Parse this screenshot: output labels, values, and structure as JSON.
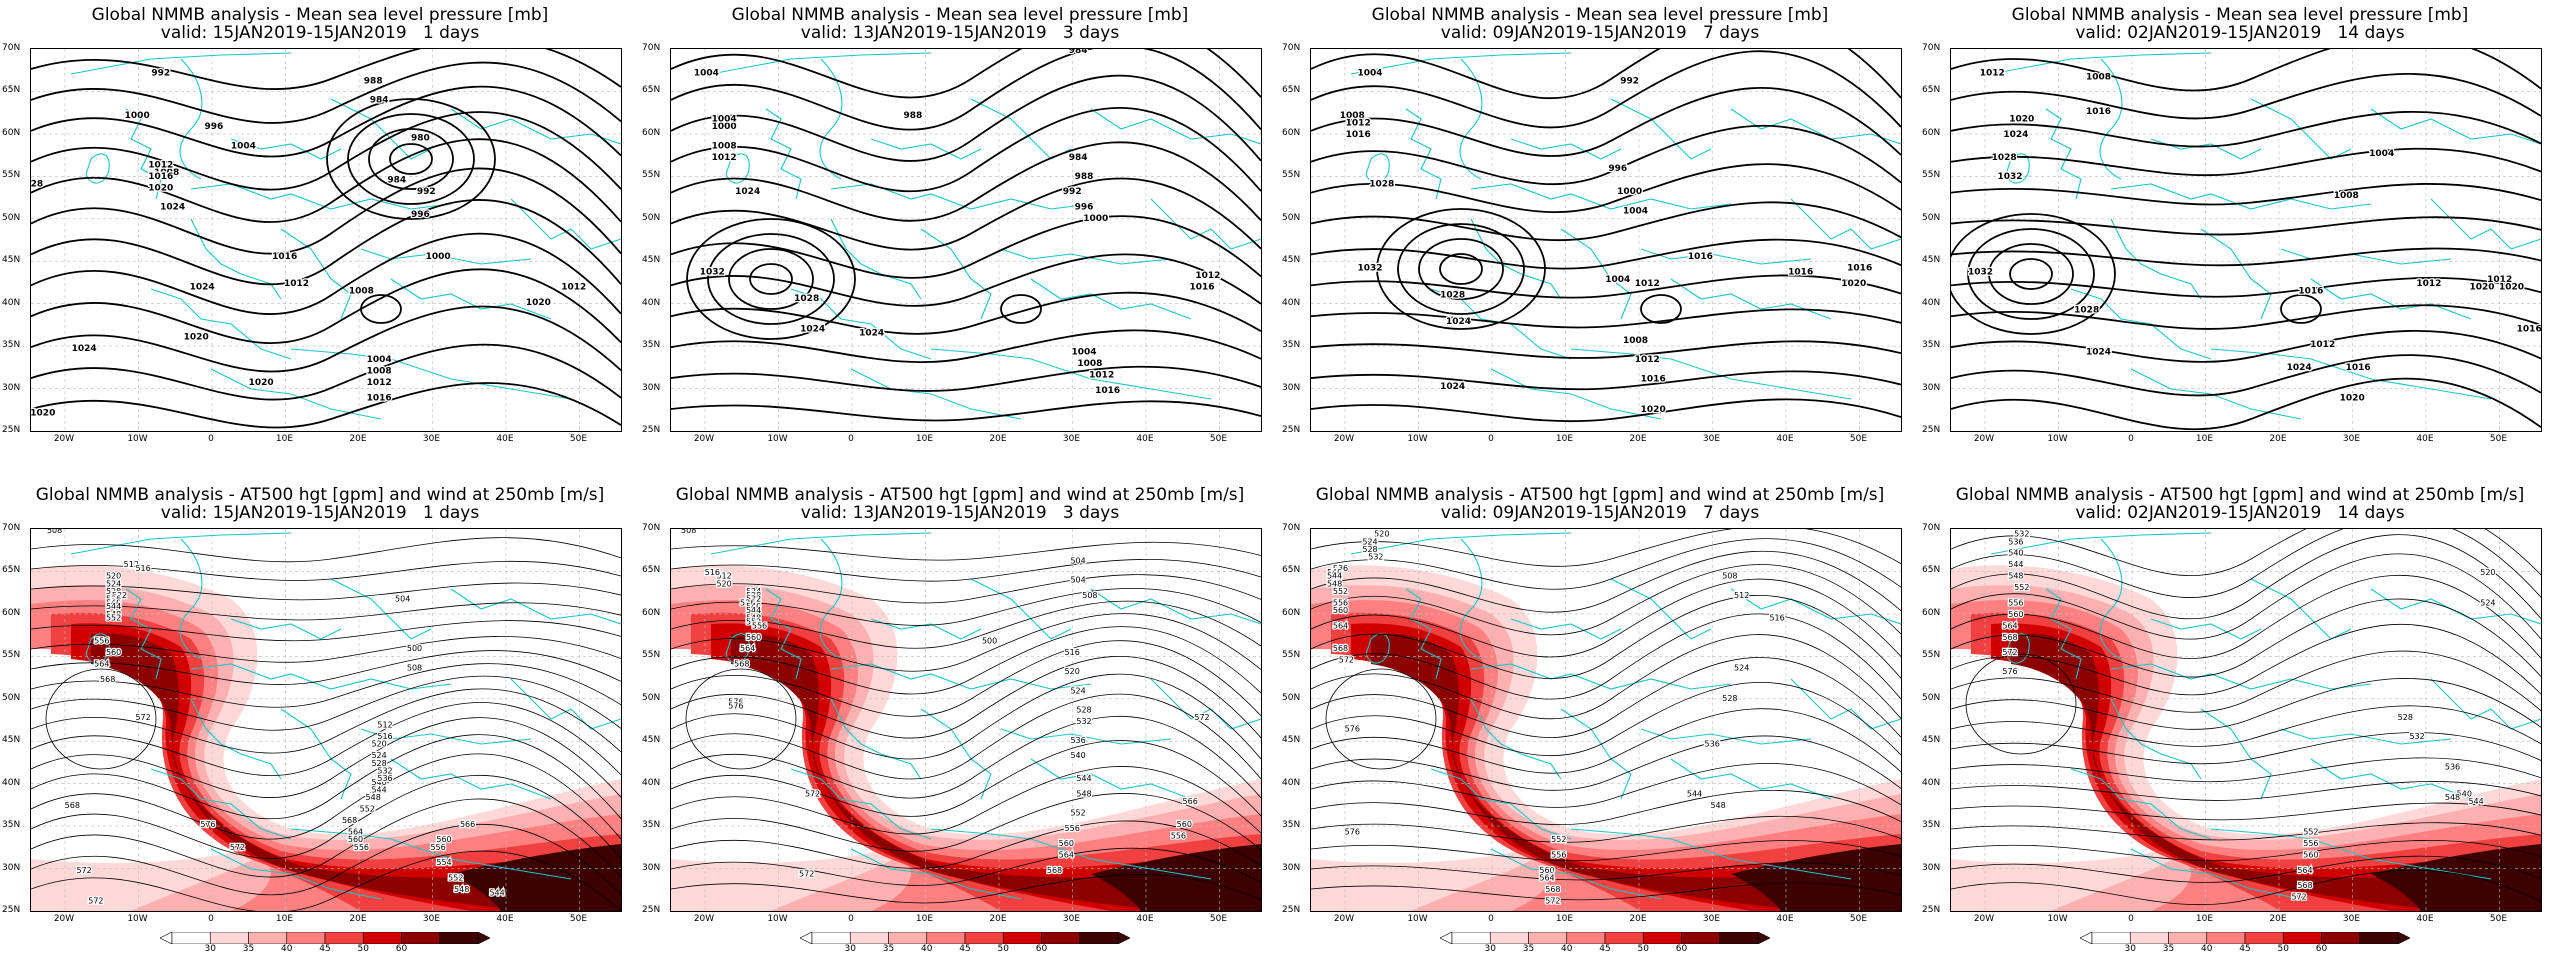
{
  "panels": [
    {
      "title1": "Global NMMB analysis - Mean sea level pressure [mb]",
      "title2": "valid: 15JAN2019-15JAN2019   1 days",
      "kind": "mslp",
      "labels": [
        "992",
        "1000",
        "996",
        "1004",
        "988",
        "984",
        "980",
        "984",
        "992",
        "996",
        "1008",
        "1012",
        "1016",
        "1020",
        "1024",
        "28",
        "1016",
        "1012",
        "1008",
        "1000",
        "1004",
        "1008",
        "1012",
        "1016",
        "1020",
        "1024",
        "1020",
        "1012",
        "1020",
        "1024",
        "1020"
      ],
      "label_pos": [
        [
          0.22,
          0.07
        ],
        [
          0.18,
          0.18
        ],
        [
          0.31,
          0.21
        ],
        [
          0.36,
          0.26
        ],
        [
          0.58,
          0.09
        ],
        [
          0.59,
          0.14
        ],
        [
          0.66,
          0.24
        ],
        [
          0.62,
          0.35
        ],
        [
          0.67,
          0.38
        ],
        [
          0.66,
          0.44
        ],
        [
          0.23,
          0.33
        ],
        [
          0.22,
          0.31
        ],
        [
          0.22,
          0.34
        ],
        [
          0.22,
          0.37
        ],
        [
          0.24,
          0.42
        ],
        [
          0.01,
          0.36
        ],
        [
          0.43,
          0.55
        ],
        [
          0.45,
          0.62
        ],
        [
          0.56,
          0.64
        ],
        [
          0.69,
          0.55
        ],
        [
          0.59,
          0.82
        ],
        [
          0.59,
          0.85
        ],
        [
          0.59,
          0.88
        ],
        [
          0.59,
          0.92
        ],
        [
          0.39,
          0.88
        ],
        [
          0.29,
          0.63
        ],
        [
          0.28,
          0.76
        ],
        [
          0.92,
          0.63
        ],
        [
          0.86,
          0.67
        ],
        [
          0.09,
          0.79
        ],
        [
          0.02,
          0.96
        ]
      ]
    },
    {
      "title1": "Global NMMB analysis - Mean sea level pressure [mb]",
      "title2": "valid: 13JAN2019-15JAN2019   3 days",
      "kind": "mslp",
      "labels": [
        "1004",
        "984",
        "988",
        "1000",
        "1004",
        "1008",
        "1012",
        "1024",
        "1032",
        "1028",
        "1024",
        "992",
        "988",
        "984",
        "996",
        "1000",
        "1004",
        "1008",
        "1012",
        "1016",
        "1016",
        "1012",
        "1024"
      ],
      "label_pos": [
        [
          0.06,
          0.07
        ],
        [
          0.69,
          0.01
        ],
        [
          0.41,
          0.18
        ],
        [
          0.09,
          0.21
        ],
        [
          0.09,
          0.19
        ],
        [
          0.09,
          0.26
        ],
        [
          0.09,
          0.29
        ],
        [
          0.13,
          0.38
        ],
        [
          0.07,
          0.59
        ],
        [
          0.23,
          0.66
        ],
        [
          0.24,
          0.74
        ],
        [
          0.68,
          0.38
        ],
        [
          0.7,
          0.34
        ],
        [
          0.69,
          0.29
        ],
        [
          0.7,
          0.42
        ],
        [
          0.72,
          0.45
        ],
        [
          0.7,
          0.8
        ],
        [
          0.71,
          0.83
        ],
        [
          0.73,
          0.86
        ],
        [
          0.74,
          0.9
        ],
        [
          0.9,
          0.63
        ],
        [
          0.91,
          0.6
        ],
        [
          0.34,
          0.75
        ]
      ]
    },
    {
      "title1": "Global NMMB analysis - Mean sea level pressure [mb]",
      "title2": "valid: 09JAN2019-15JAN2019   7 days",
      "kind": "mslp",
      "labels": [
        "1004",
        "1008",
        "1012",
        "1016",
        "1028",
        "1032",
        "1028",
        "1024",
        "992",
        "996",
        "1000",
        "1004",
        "1016",
        "1024",
        "1004",
        "1012",
        "1008",
        "1012",
        "1016",
        "1020",
        "1016",
        "1020",
        "1016"
      ],
      "label_pos": [
        [
          0.1,
          0.07
        ],
        [
          0.07,
          0.18
        ],
        [
          0.08,
          0.2
        ],
        [
          0.08,
          0.23
        ],
        [
          0.12,
          0.36
        ],
        [
          0.1,
          0.58
        ],
        [
          0.24,
          0.65
        ],
        [
          0.25,
          0.72
        ],
        [
          0.54,
          0.09
        ],
        [
          0.52,
          0.32
        ],
        [
          0.54,
          0.38
        ],
        [
          0.55,
          0.43
        ],
        [
          0.66,
          0.55
        ],
        [
          0.24,
          0.89
        ],
        [
          0.52,
          0.61
        ],
        [
          0.57,
          0.62
        ],
        [
          0.55,
          0.77
        ],
        [
          0.57,
          0.82
        ],
        [
          0.58,
          0.87
        ],
        [
          0.58,
          0.95
        ],
        [
          0.83,
          0.59
        ],
        [
          0.92,
          0.62
        ],
        [
          0.93,
          0.58
        ]
      ]
    },
    {
      "title1": "Global NMMB analysis - Mean sea level pressure [mb]",
      "title2": "valid: 02JAN2019-15JAN2019   14 days",
      "kind": "mslp",
      "labels": [
        "1012",
        "1008",
        "1016",
        "1020",
        "1024",
        "1028",
        "1032",
        "1032",
        "1028",
        "1024",
        "1004",
        "1008",
        "1016",
        "1012",
        "1012",
        "1016",
        "1020",
        "1024",
        "1020",
        "1016",
        "1012",
        "1020"
      ],
      "label_pos": [
        [
          0.07,
          0.07
        ],
        [
          0.25,
          0.08
        ],
        [
          0.25,
          0.17
        ],
        [
          0.12,
          0.19
        ],
        [
          0.11,
          0.23
        ],
        [
          0.09,
          0.29
        ],
        [
          0.1,
          0.34
        ],
        [
          0.05,
          0.59
        ],
        [
          0.23,
          0.69
        ],
        [
          0.25,
          0.8
        ],
        [
          0.73,
          0.28
        ],
        [
          0.67,
          0.39
        ],
        [
          0.61,
          0.64
        ],
        [
          0.63,
          0.78
        ],
        [
          0.81,
          0.62
        ],
        [
          0.69,
          0.84
        ],
        [
          0.68,
          0.92
        ],
        [
          0.59,
          0.84
        ],
        [
          0.9,
          0.63
        ],
        [
          0.98,
          0.74
        ],
        [
          0.93,
          0.61
        ],
        [
          0.95,
          0.63
        ]
      ]
    },
    {
      "title1": "Global NMMB analysis - AT500 hgt [gpm] and wind at 250mb [m/s]",
      "title2": "valid: 15JAN2019-15JAN2019   1 days",
      "kind": "z500",
      "labels": [
        "508",
        "512",
        "516",
        "520",
        "524",
        "528",
        "532",
        "536",
        "540",
        "544",
        "548",
        "552",
        "556",
        "560",
        "564",
        "568",
        "572",
        "576",
        "572",
        "568",
        "564",
        "560",
        "556",
        "552",
        "548",
        "544",
        "540",
        "536",
        "532",
        "528",
        "524",
        "520",
        "516",
        "512",
        "504",
        "500",
        "508",
        "568",
        "572",
        "566",
        "560",
        "556",
        "554",
        "552",
        "548",
        "544",
        "572"
      ],
      "label_pos": [
        [
          0.04,
          0.01
        ],
        [
          0.17,
          0.1
        ],
        [
          0.19,
          0.11
        ],
        [
          0.14,
          0.13
        ],
        [
          0.14,
          0.15
        ],
        [
          0.14,
          0.17
        ],
        [
          0.15,
          0.18
        ],
        [
          0.14,
          0.19
        ],
        [
          0.14,
          0.2
        ],
        [
          0.14,
          0.21
        ],
        [
          0.14,
          0.23
        ],
        [
          0.14,
          0.24
        ],
        [
          0.12,
          0.3
        ],
        [
          0.14,
          0.33
        ],
        [
          0.12,
          0.36
        ],
        [
          0.13,
          0.4
        ],
        [
          0.19,
          0.5
        ],
        [
          0.3,
          0.78
        ],
        [
          0.35,
          0.84
        ],
        [
          0.54,
          0.77
        ],
        [
          0.55,
          0.8
        ],
        [
          0.55,
          0.82
        ],
        [
          0.56,
          0.84
        ],
        [
          0.57,
          0.74
        ],
        [
          0.58,
          0.71
        ],
        [
          0.59,
          0.69
        ],
        [
          0.59,
          0.67
        ],
        [
          0.6,
          0.66
        ],
        [
          0.6,
          0.64
        ],
        [
          0.59,
          0.62
        ],
        [
          0.59,
          0.6
        ],
        [
          0.59,
          0.57
        ],
        [
          0.6,
          0.55
        ],
        [
          0.6,
          0.52
        ],
        [
          0.63,
          0.19
        ],
        [
          0.65,
          0.32
        ],
        [
          0.65,
          0.37
        ],
        [
          0.07,
          0.73
        ],
        [
          0.09,
          0.9
        ],
        [
          0.74,
          0.78
        ],
        [
          0.7,
          0.82
        ],
        [
          0.69,
          0.84
        ],
        [
          0.7,
          0.88
        ],
        [
          0.72,
          0.92
        ],
        [
          0.73,
          0.95
        ],
        [
          0.79,
          0.96
        ],
        [
          0.11,
          0.98
        ]
      ]
    },
    {
      "title1": "Global NMMB analysis - AT500 hgt [gpm] and wind at 250mb [m/s]",
      "title2": "valid: 13JAN2019-15JAN2019   3 days",
      "kind": "z500",
      "labels": [
        "508",
        "512",
        "516",
        "520",
        "524",
        "528",
        "532",
        "536",
        "540",
        "544",
        "548",
        "552",
        "556",
        "560",
        "564",
        "568",
        "576",
        "572",
        "504",
        "508",
        "516",
        "520",
        "524",
        "528",
        "532",
        "536",
        "540",
        "544",
        "548",
        "552",
        "556",
        "560",
        "564",
        "568",
        "572",
        "576",
        "500",
        "504",
        "572",
        "566",
        "560",
        "556"
      ],
      "label_pos": [
        [
          0.03,
          0.01
        ],
        [
          0.09,
          0.13
        ],
        [
          0.07,
          0.12
        ],
        [
          0.09,
          0.15
        ],
        [
          0.14,
          0.17
        ],
        [
          0.14,
          0.18
        ],
        [
          0.14,
          0.19
        ],
        [
          0.13,
          0.2
        ],
        [
          0.14,
          0.21
        ],
        [
          0.14,
          0.22
        ],
        [
          0.14,
          0.24
        ],
        [
          0.14,
          0.25
        ],
        [
          0.15,
          0.26
        ],
        [
          0.14,
          0.29
        ],
        [
          0.13,
          0.32
        ],
        [
          0.12,
          0.36
        ],
        [
          0.11,
          0.46
        ],
        [
          0.23,
          0.91
        ],
        [
          0.69,
          0.09
        ],
        [
          0.71,
          0.18
        ],
        [
          0.68,
          0.33
        ],
        [
          0.68,
          0.38
        ],
        [
          0.69,
          0.43
        ],
        [
          0.7,
          0.48
        ],
        [
          0.7,
          0.51
        ],
        [
          0.69,
          0.56
        ],
        [
          0.69,
          0.6
        ],
        [
          0.7,
          0.66
        ],
        [
          0.7,
          0.7
        ],
        [
          0.69,
          0.75
        ],
        [
          0.68,
          0.79
        ],
        [
          0.67,
          0.83
        ],
        [
          0.67,
          0.86
        ],
        [
          0.65,
          0.9
        ],
        [
          0.24,
          0.7
        ],
        [
          0.11,
          0.47
        ],
        [
          0.54,
          0.3
        ],
        [
          0.69,
          0.14
        ],
        [
          0.9,
          0.5
        ],
        [
          0.88,
          0.72
        ],
        [
          0.87,
          0.78
        ],
        [
          0.86,
          0.81
        ]
      ]
    },
    {
      "title1": "Global NMMB analysis - AT500 hgt [gpm] and wind at 250mb [m/s]",
      "title2": "valid: 09JAN2019-15JAN2019   7 days",
      "kind": "z500",
      "labels": [
        "520",
        "524",
        "528",
        "532",
        "536",
        "540",
        "544",
        "548",
        "552",
        "556",
        "560",
        "564",
        "568",
        "572",
        "576",
        "508",
        "512",
        "516",
        "524",
        "528",
        "536",
        "544",
        "548",
        "552",
        "556",
        "560",
        "564",
        "568",
        "572",
        "576"
      ],
      "label_pos": [
        [
          0.12,
          0.02
        ],
        [
          0.1,
          0.04
        ],
        [
          0.1,
          0.06
        ],
        [
          0.11,
          0.08
        ],
        [
          0.05,
          0.11
        ],
        [
          0.04,
          0.12
        ],
        [
          0.04,
          0.13
        ],
        [
          0.04,
          0.15
        ],
        [
          0.05,
          0.17
        ],
        [
          0.05,
          0.2
        ],
        [
          0.05,
          0.22
        ],
        [
          0.05,
          0.26
        ],
        [
          0.05,
          0.32
        ],
        [
          0.06,
          0.35
        ],
        [
          0.07,
          0.53
        ],
        [
          0.71,
          0.13
        ],
        [
          0.73,
          0.18
        ],
        [
          0.79,
          0.24
        ],
        [
          0.73,
          0.37
        ],
        [
          0.71,
          0.45
        ],
        [
          0.68,
          0.57
        ],
        [
          0.65,
          0.7
        ],
        [
          0.69,
          0.73
        ],
        [
          0.42,
          0.82
        ],
        [
          0.42,
          0.86
        ],
        [
          0.4,
          0.9
        ],
        [
          0.4,
          0.92
        ],
        [
          0.41,
          0.95
        ],
        [
          0.41,
          0.98
        ],
        [
          0.07,
          0.8
        ]
      ]
    },
    {
      "title1": "Global NMMB analysis - AT500 hgt [gpm] and wind at 250mb [m/s]",
      "title2": "valid: 02JAN2019-15JAN2019   14 days",
      "kind": "z500",
      "labels": [
        "532",
        "536",
        "540",
        "544",
        "548",
        "552",
        "556",
        "560",
        "564",
        "568",
        "572",
        "576",
        "524",
        "520",
        "528",
        "532",
        "536",
        "540",
        "544",
        "548",
        "552",
        "556",
        "560",
        "564",
        "568",
        "572"
      ],
      "label_pos": [
        [
          0.12,
          0.02
        ],
        [
          0.11,
          0.04
        ],
        [
          0.11,
          0.07
        ],
        [
          0.11,
          0.1
        ],
        [
          0.11,
          0.13
        ],
        [
          0.12,
          0.16
        ],
        [
          0.11,
          0.2
        ],
        [
          0.11,
          0.23
        ],
        [
          0.1,
          0.26
        ],
        [
          0.1,
          0.29
        ],
        [
          0.1,
          0.33
        ],
        [
          0.1,
          0.38
        ],
        [
          0.91,
          0.2
        ],
        [
          0.91,
          0.12
        ],
        [
          0.77,
          0.5
        ],
        [
          0.79,
          0.55
        ],
        [
          0.85,
          0.63
        ],
        [
          0.87,
          0.7
        ],
        [
          0.89,
          0.72
        ],
        [
          0.85,
          0.71
        ],
        [
          0.61,
          0.8
        ],
        [
          0.61,
          0.83
        ],
        [
          0.61,
          0.86
        ],
        [
          0.6,
          0.9
        ],
        [
          0.6,
          0.94
        ],
        [
          0.59,
          0.97
        ]
      ]
    }
  ],
  "lat_labels": [
    "70N",
    "65N",
    "60N",
    "55N",
    "50N",
    "45N",
    "40N",
    "35N",
    "30N",
    "25N"
  ],
  "lon_labels": [
    "20W",
    "10W",
    "0",
    "10E",
    "20E",
    "30E",
    "40E",
    "50E"
  ],
  "colorbar_ticks": [
    "30",
    "35",
    "40",
    "45",
    "50",
    "60"
  ],
  "colors": {
    "coast": "#19c6cc",
    "contour": "#000000",
    "wind_levels": [
      "#ffd8d8",
      "#ffb0b0",
      "#ff8080",
      "#f04040",
      "#d00000",
      "#8c0000",
      "#3c0000"
    ]
  }
}
